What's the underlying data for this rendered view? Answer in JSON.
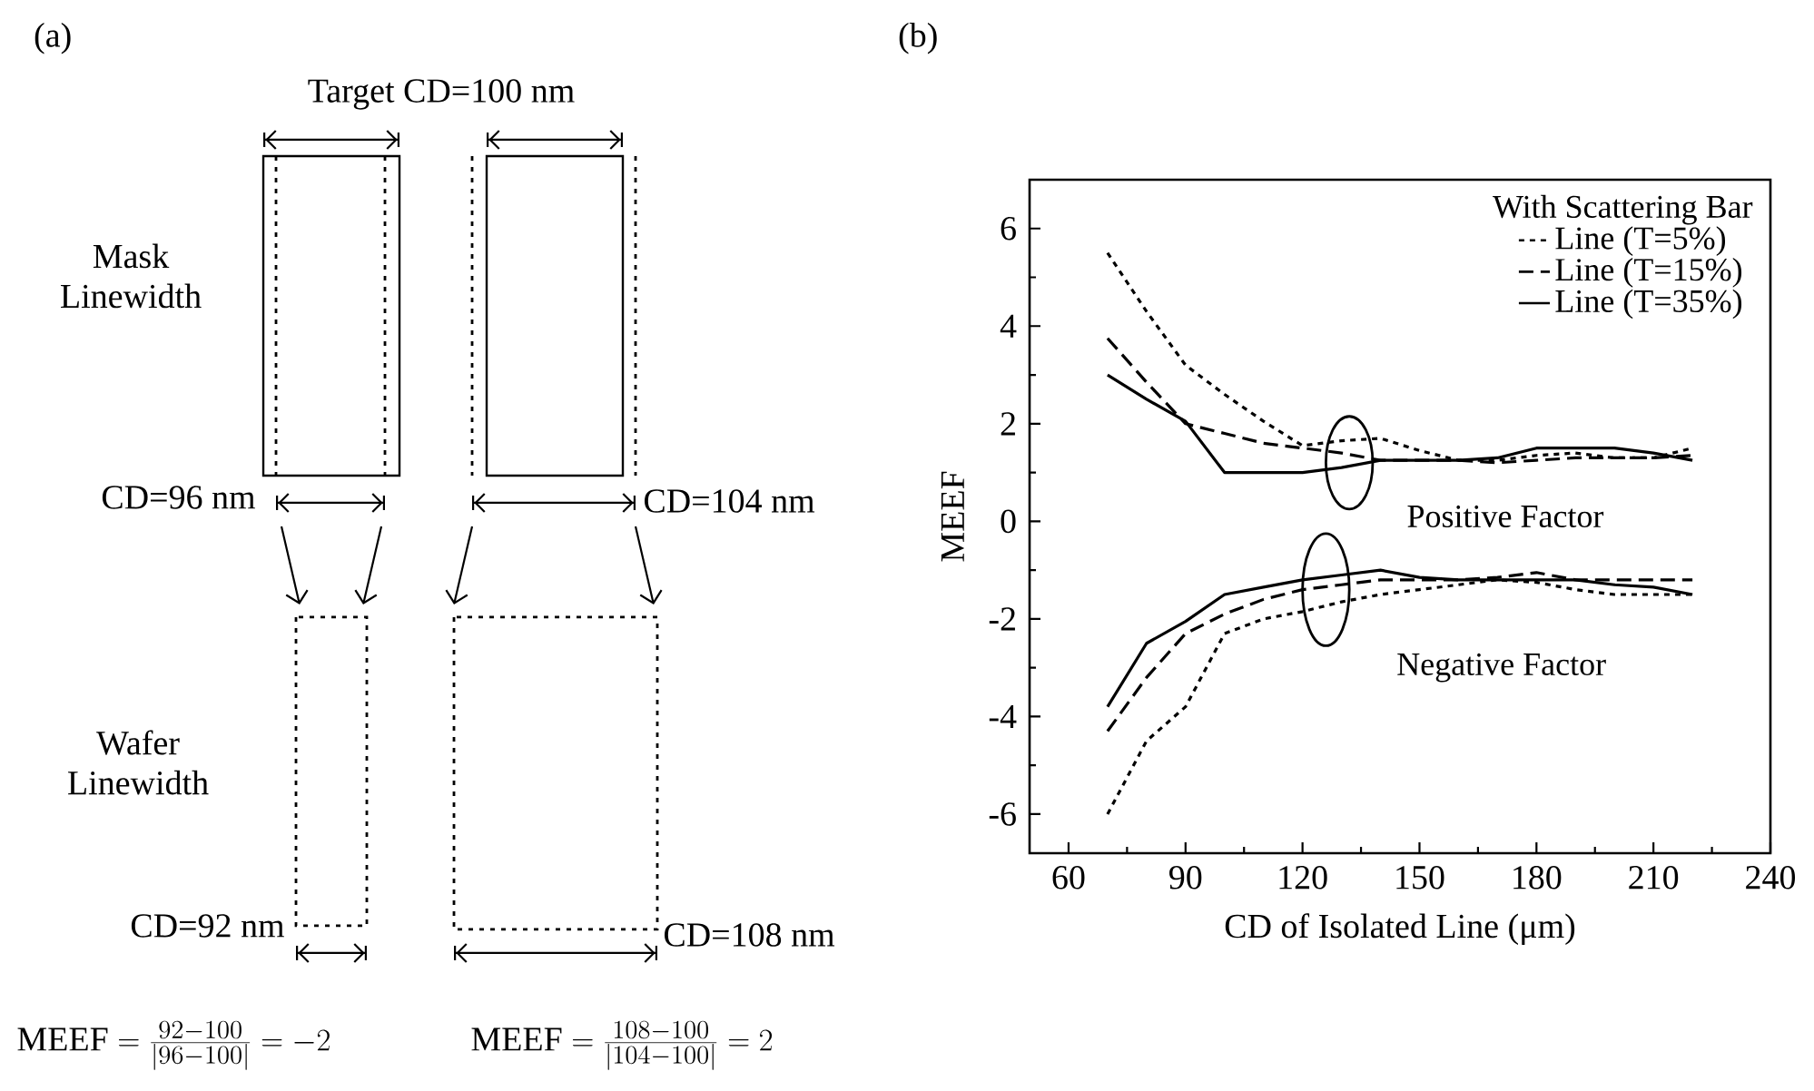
{
  "chart_data": [
    {
      "type": "other",
      "title": "(a)",
      "annotations": [
        "Target CD=100 nm",
        "Mask Linewidth",
        "CD=96 nm",
        "CD=104 nm",
        "Wafer Linewidth",
        "CD=92 nm",
        "CD=108 nm",
        "\\mathrm{MEEF}=\\frac{92-100}{|96-100|}=-2",
        "\\mathrm{MEEF}=\\frac{108-100}{|104-100|}=2"
      ]
    },
    {
      "type": "line",
      "title": "(b)",
      "xlabel": "CD of Isolated Line (μm)",
      "ylabel": "MEEF",
      "legend_title": "With Scattering Bar",
      "legend": "top right",
      "xlim": [
        50,
        240
      ],
      "xticks": [
        60,
        90,
        120,
        150,
        180,
        210,
        240
      ],
      "ylim": [
        -6.8,
        7
      ],
      "yticks": [
        -6,
        -4,
        -2,
        0,
        2,
        4,
        6
      ],
      "x": [
        70,
        80,
        90,
        100,
        110,
        120,
        130,
        140,
        150,
        160,
        170,
        180,
        190,
        200,
        210,
        220
      ],
      "annotations": [
        "Positive Factor",
        "Negative Factor"
      ],
      "series": [
        {
          "name": "Line (T=5%)",
          "color": "#000000",
          "line_style": "dotted",
          "values": [
            5.5,
            4.3,
            3.2,
            2.6,
            2.05,
            1.55,
            1.65,
            1.7,
            1.45,
            1.25,
            1.25,
            1.35,
            1.4,
            1.3,
            1.3,
            1.5
          ]
        },
        {
          "name": "Line (T=15%)",
          "color": "#000000",
          "line_style": "dashed",
          "values": [
            3.75,
            2.85,
            2.0,
            1.8,
            1.6,
            1.5,
            1.4,
            1.25,
            1.25,
            1.25,
            1.2,
            1.25,
            1.3,
            1.3,
            1.3,
            1.35
          ]
        },
        {
          "name": "Line (T=35%)",
          "color": "#000000",
          "line_style": "solid",
          "values": [
            3.0,
            2.5,
            2.05,
            1.0,
            1.0,
            1.0,
            1.1,
            1.25,
            1.25,
            1.25,
            1.3,
            1.5,
            1.5,
            1.5,
            1.4,
            1.25
          ]
        },
        {
          "color": "#000000",
          "line_style": "dotted",
          "values": [
            -6.0,
            -4.5,
            -3.8,
            -2.3,
            -2.0,
            -1.85,
            -1.65,
            -1.5,
            -1.4,
            -1.3,
            -1.2,
            -1.25,
            -1.4,
            -1.5,
            -1.5,
            -1.5
          ]
        },
        {
          "color": "#000000",
          "line_style": "dashed",
          "values": [
            -4.3,
            -3.2,
            -2.3,
            -1.9,
            -1.6,
            -1.4,
            -1.3,
            -1.2,
            -1.2,
            -1.2,
            -1.15,
            -1.05,
            -1.2,
            -1.2,
            -1.2,
            -1.2
          ]
        },
        {
          "color": "#000000",
          "line_style": "solid",
          "values": [
            -3.8,
            -2.5,
            -2.05,
            -1.5,
            -1.35,
            -1.2,
            -1.1,
            -1.0,
            -1.15,
            -1.2,
            -1.2,
            -1.2,
            -1.2,
            -1.3,
            -1.35,
            -1.5
          ]
        }
      ]
    }
  ]
}
